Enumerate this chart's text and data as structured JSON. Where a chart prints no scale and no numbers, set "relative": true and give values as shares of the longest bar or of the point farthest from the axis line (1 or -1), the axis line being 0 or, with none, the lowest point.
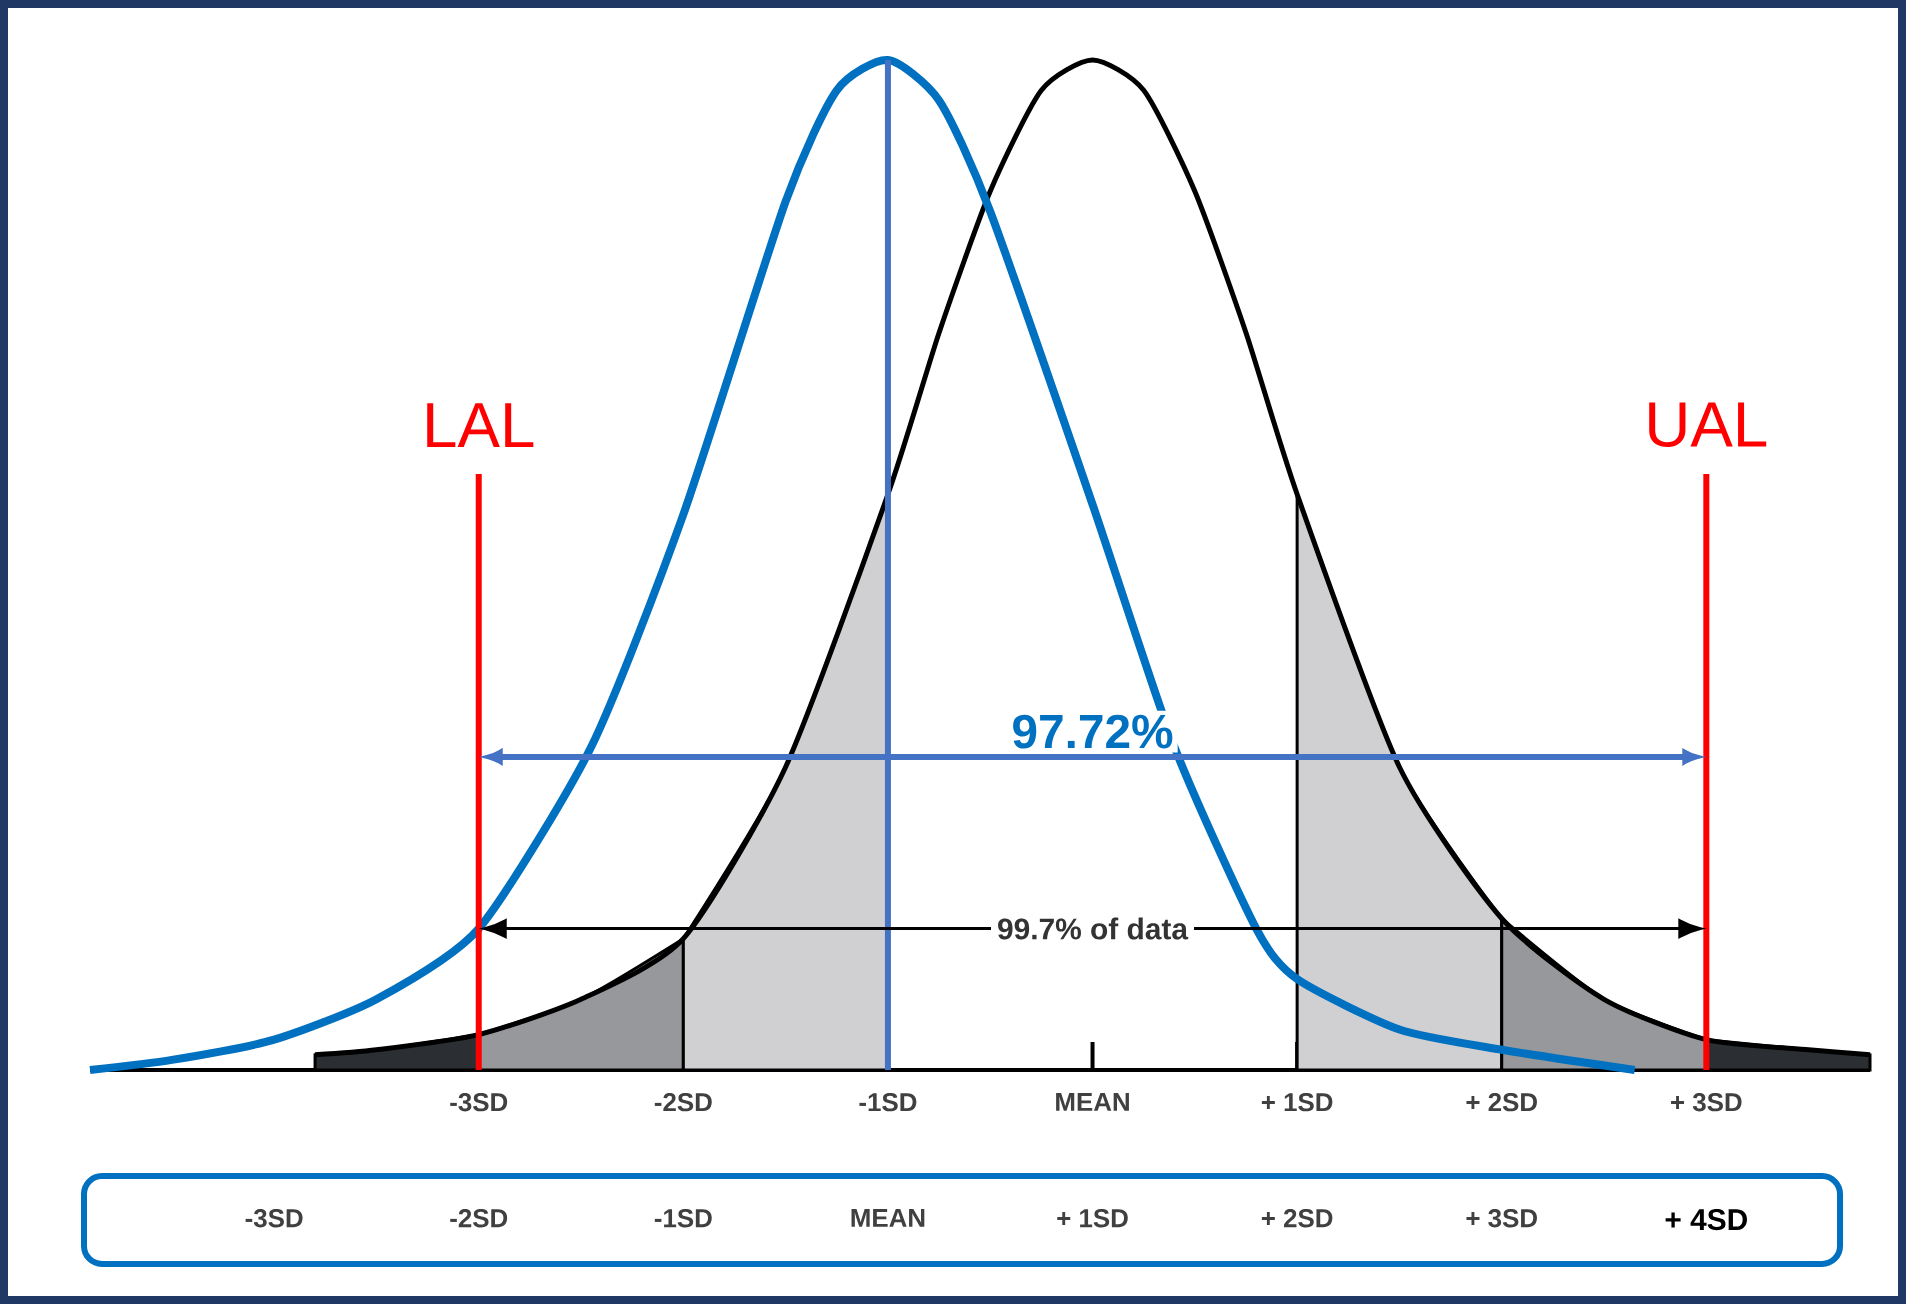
{
  "chart_data": {
    "type": "line",
    "relative": true,
    "xlim": [
      -4.9,
      3.8
    ],
    "xticks": [
      {
        "value": -3,
        "label": "-3SD"
      },
      {
        "value": -2,
        "label": "-2SD"
      },
      {
        "value": -1,
        "label": "-1SD"
      },
      {
        "value": 0,
        "label": "MEAN"
      },
      {
        "value": 1,
        "label": "+ 1SD"
      },
      {
        "value": 2,
        "label": "+ 2SD"
      },
      {
        "value": 3,
        "label": "+ 3SD"
      }
    ],
    "x2lim": [
      -3.9,
      4.8
    ],
    "x2ticks": [
      {
        "value": -3,
        "label": "-3SD"
      },
      {
        "value": -2,
        "label": "-2SD"
      },
      {
        "value": -1,
        "label": "-1SD"
      },
      {
        "value": 0,
        "label": "MEAN"
      },
      {
        "value": 1,
        "label": "+ 1SD"
      },
      {
        "value": 2,
        "label": "+ 2SD"
      },
      {
        "value": 3,
        "label": "+ 3SD"
      },
      {
        "value": 4,
        "label": "+ 4SD"
      }
    ],
    "series": [
      {
        "type": "area",
        "color": "#2b2f33",
        "x": [
          -3.8,
          -3.5,
          -3
        ],
        "values": [
          0.015,
          0.02,
          0.035
        ]
      },
      {
        "type": "area",
        "color": "#97989b",
        "x": [
          -3,
          -2.5,
          -2
        ],
        "values": [
          0.035,
          0.07,
          0.13
        ]
      },
      {
        "type": "area",
        "color": "#d0d0d2",
        "x": [
          -2,
          -1.5,
          -1
        ],
        "values": [
          0.13,
          0.3,
          0.57
        ]
      },
      {
        "type": "area",
        "color": "#d0d0d2",
        "x": [
          1,
          1.5,
          2
        ],
        "values": [
          0.57,
          0.3,
          0.15
        ]
      },
      {
        "type": "area",
        "color": "#97989b",
        "x": [
          2,
          2.5,
          3
        ],
        "values": [
          0.15,
          0.07,
          0.03
        ]
      },
      {
        "type": "area",
        "color": "#2b2f33",
        "x": [
          3,
          3.5,
          3.8
        ],
        "values": [
          0.03,
          0.02,
          0.015
        ]
      },
      {
        "color": "#000000",
        "x": [
          -3.8,
          -3.5,
          -3,
          -2.5,
          -2,
          -1.5,
          -1,
          -0.75,
          -0.5,
          -0.25,
          0,
          0.25,
          0.5,
          0.75,
          1,
          1.5,
          2,
          2.5,
          3,
          3.5,
          3.8
        ],
        "values": [
          0.015,
          0.02,
          0.035,
          0.07,
          0.13,
          0.3,
          0.57,
          0.73,
          0.87,
          0.97,
          1,
          0.97,
          0.87,
          0.73,
          0.57,
          0.3,
          0.15,
          0.07,
          0.03,
          0.02,
          0.015
        ]
      },
      {
        "color": "#0070c0",
        "x": [
          -4.9,
          -4.5,
          -4,
          -3.5,
          -3,
          -2.45,
          -2,
          -1.5,
          -1.25,
          -1,
          -0.75,
          -0.5,
          0,
          0.4,
          0.8,
          1,
          1.5,
          2,
          2.65
        ],
        "values": [
          0,
          0.01,
          0.03,
          0.07,
          0.14,
          0.32,
          0.55,
          0.86,
          0.97,
          1,
          0.96,
          0.85,
          0.56,
          0.32,
          0.14,
          0.09,
          0.04,
          0.02,
          0
        ]
      }
    ],
    "ref_lines": [
      {
        "axis": "x",
        "value": -3,
        "label": "LAL",
        "color": "#ff0000"
      },
      {
        "axis": "x",
        "value": 3,
        "label": "UAL",
        "color": "#ff0000"
      },
      {
        "axis": "x",
        "value": -1,
        "color": "#4472c4"
      }
    ],
    "annotations": [
      "97.72%",
      "99.7% of data"
    ]
  }
}
